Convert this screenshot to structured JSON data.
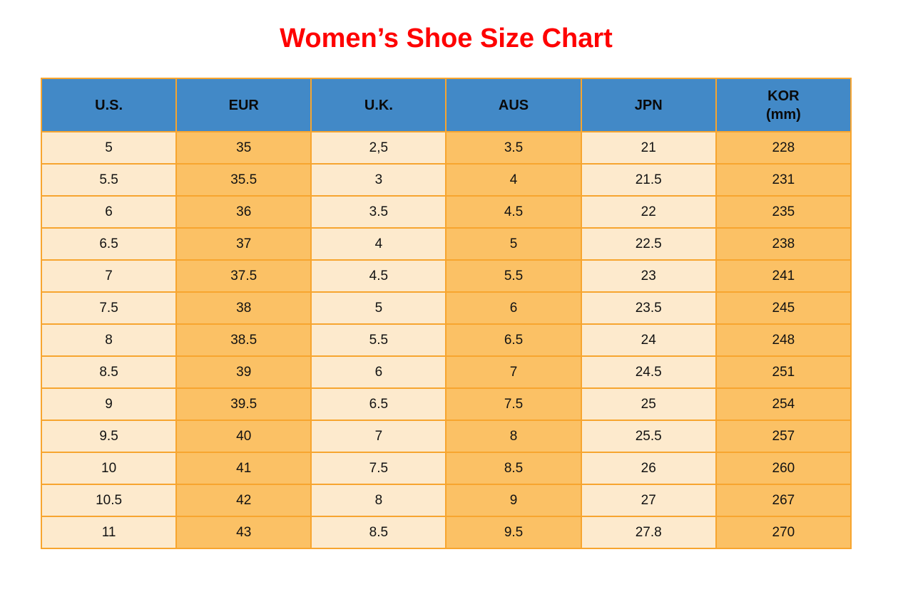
{
  "title": "Women’s Shoe Size Chart",
  "colors": {
    "title_red": "#fe0000",
    "header_blue": "#4289c7",
    "cell_cream": "#fdeacd",
    "cell_orange": "#fbc165",
    "grid_border": "#f7a52f",
    "text": "#121212"
  },
  "chart_data": {
    "type": "table",
    "title": "Women’s Shoe Size Chart",
    "columns": [
      {
        "label": "U.S."
      },
      {
        "label": "EUR"
      },
      {
        "label": "U.K."
      },
      {
        "label": "AUS"
      },
      {
        "label": "JPN"
      },
      {
        "label": "KOR",
        "sublabel": "(mm)"
      }
    ],
    "rows": [
      [
        "5",
        "35",
        "2,5",
        "3.5",
        "21",
        "228"
      ],
      [
        "5.5",
        "35.5",
        "3",
        "4",
        "21.5",
        "231"
      ],
      [
        "6",
        "36",
        "3.5",
        "4.5",
        "22",
        "235"
      ],
      [
        "6.5",
        "37",
        "4",
        "5",
        "22.5",
        "238"
      ],
      [
        "7",
        "37.5",
        "4.5",
        "5.5",
        "23",
        "241"
      ],
      [
        "7.5",
        "38",
        "5",
        "6",
        "23.5",
        "245"
      ],
      [
        "8",
        "38.5",
        "5.5",
        "6.5",
        "24",
        "248"
      ],
      [
        "8.5",
        "39",
        "6",
        "7",
        "24.5",
        "251"
      ],
      [
        "9",
        "39.5",
        "6.5",
        "7.5",
        "25",
        "254"
      ],
      [
        "9.5",
        "40",
        "7",
        "8",
        "25.5",
        "257"
      ],
      [
        "10",
        "41",
        "7.5",
        "8.5",
        "26",
        "260"
      ],
      [
        "10.5",
        "42",
        "8",
        "9",
        "27",
        "267"
      ],
      [
        "11",
        "43",
        "8.5",
        "9.5",
        "27.8",
        "270"
      ]
    ]
  }
}
